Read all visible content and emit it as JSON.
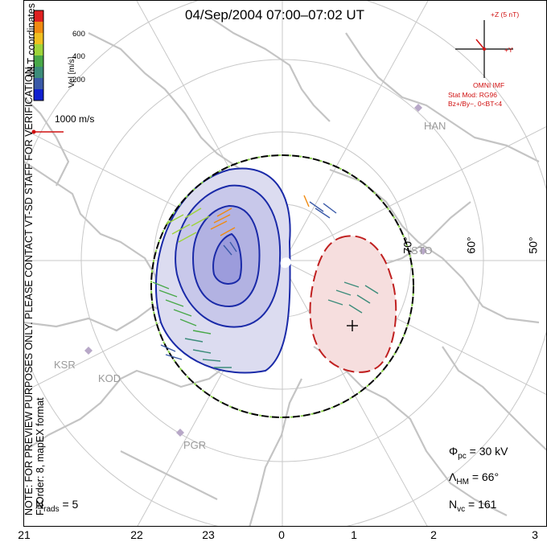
{
  "title": "04/Sep/2004 07:00–07:02 UT",
  "side_note": {
    "line1": "NOTE: FOR PREVIEW PURPOSES ONLY. PLEASE CONTACT VT-SD STAFF FOR VERIFICATION.",
    "line2": "FitOrder: 8, mapEX format"
  },
  "coord_label": "MLT coordinates",
  "colorbar": {
    "label": "Vel [m/s]",
    "ticks": [
      "600",
      "400",
      "200"
    ],
    "colors": [
      "#e02020",
      "#f08a10",
      "#f0c020",
      "#9ed43a",
      "#48a848",
      "#3c8c7a",
      "#3a5aa8",
      "#1020d0"
    ]
  },
  "scale_vector": "1000 m/s",
  "imf": {
    "z_label": "+Z (5 nT)",
    "y_label": "+Y",
    "source": "OMNI IMF",
    "model_line1": "Stat Mod: RG96",
    "model_line2": "Bz+/By−, 0<BT<4"
  },
  "latitude_labels": [
    "70°",
    "60°",
    "50°"
  ],
  "stations": [
    "HAN",
    "STO",
    "KSR",
    "KOD",
    "PGR"
  ],
  "stats": {
    "phi_pc": "= 30 kV",
    "lambda_hm": "= 66°",
    "n_vc": "= 161",
    "n_rads": "= 5"
  },
  "x_axis": [
    "21",
    "22",
    "23",
    "0",
    "1",
    "2",
    "3"
  ],
  "colors": {
    "negative_cell": "#1a2aa8",
    "positive_cell": "#c02020",
    "negative_fill": "#dcdcf0",
    "positive_fill": "#f6dede",
    "coast": "#c4c4c4",
    "grid": "#c8c8c8"
  }
}
